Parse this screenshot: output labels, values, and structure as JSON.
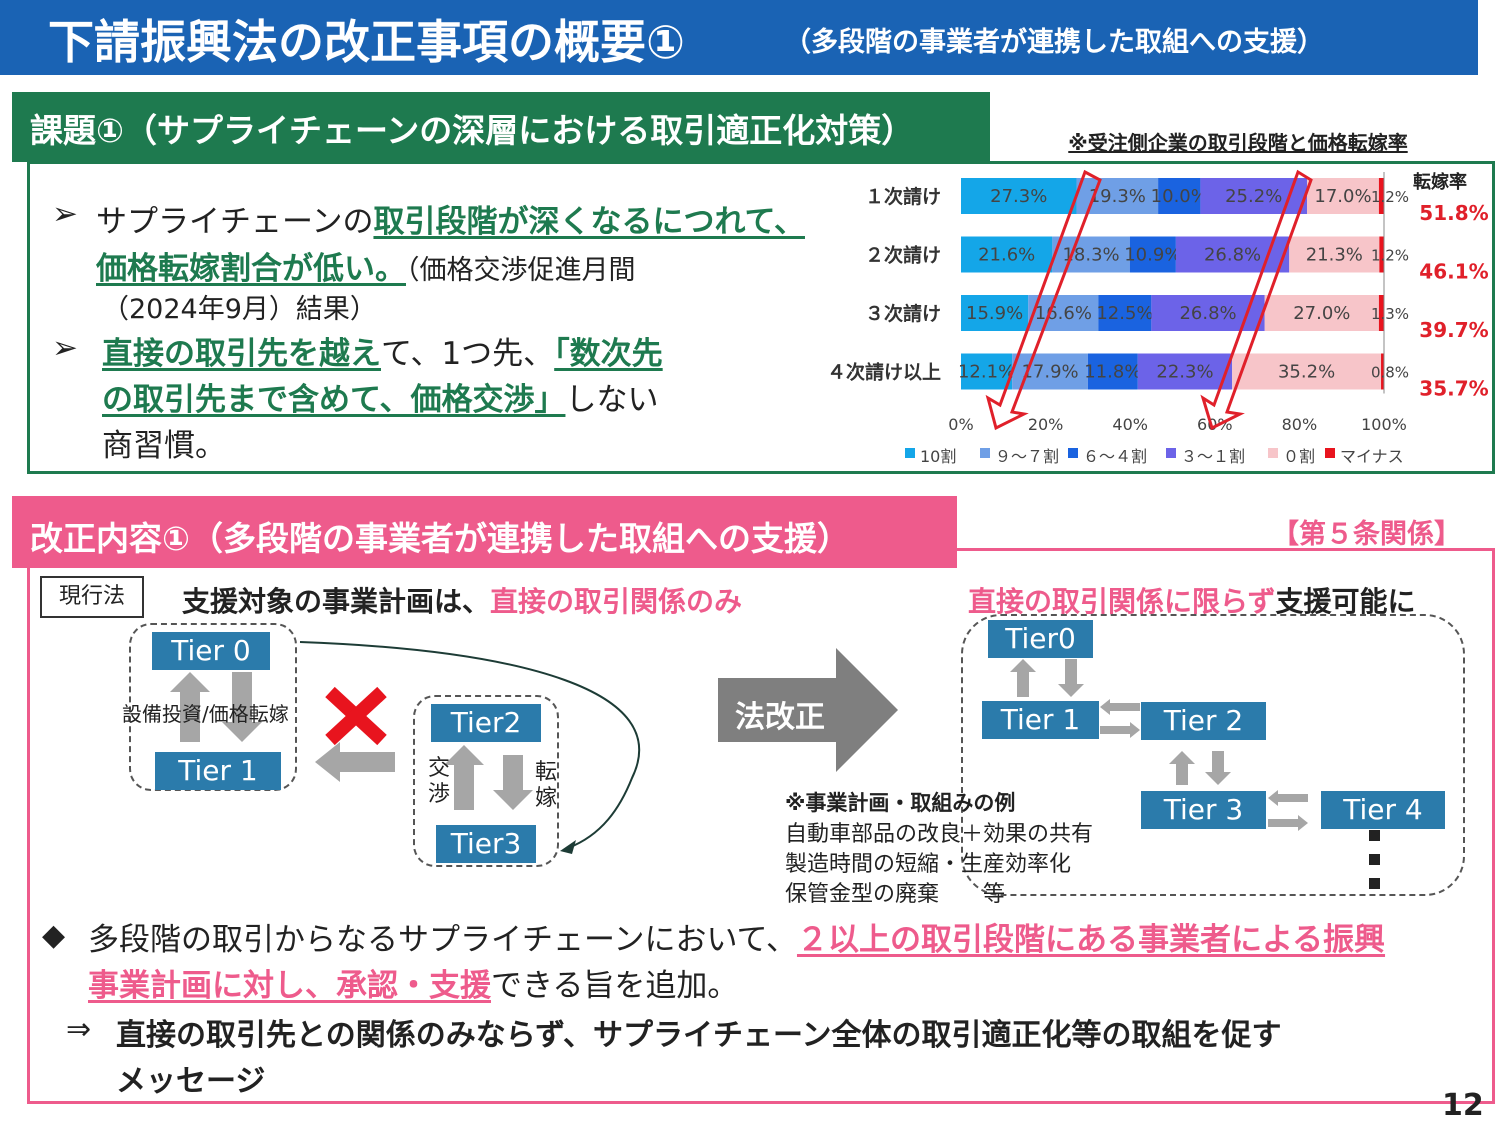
{
  "title": {
    "main": "下請振興法の改正事項の概要①",
    "sub": "（多段階の事業者が連携した取組への支援）"
  },
  "issue": {
    "header": "課題①（サプライチェーンの深層における取引適正化対策）",
    "b1_pre": "サプライチェーンの",
    "b1_em1": "取引段階が深くなるにつれて、",
    "b1_em2": "価格転嫁割合が低い。",
    "b1_post": "（価格交渉促進月間",
    "b1_post2": "（2024年9月）結果）",
    "b2_em1": "直接の取引先を越え",
    "b2_mid": "て、1つ先、",
    "b2_em2": "「数次先",
    "b2_em3": "の取引先まで含めて、価格交渉」",
    "b2_post": "しない",
    "b2_post2": "商習慣。"
  },
  "chart_data": {
    "type": "bar",
    "orientation": "horizontal-stacked-percent",
    "title": "※受注側企業の取引段階と価格転嫁率",
    "categories": [
      "１次請け",
      "２次請け",
      "３次請け",
      "４次請け以上"
    ],
    "series": [
      {
        "name": "10割",
        "color": "#14a6e8",
        "values": [
          27.3,
          21.6,
          15.9,
          12.1
        ]
      },
      {
        "name": "９～７割",
        "color": "#6f9fe6",
        "values": [
          19.3,
          18.3,
          16.6,
          17.9
        ]
      },
      {
        "name": "６～４割",
        "color": "#1a63e0",
        "values": [
          10.0,
          10.9,
          12.5,
          11.8
        ]
      },
      {
        "name": "３～１割",
        "color": "#6c63e8",
        "values": [
          25.2,
          26.8,
          26.8,
          22.3
        ]
      },
      {
        "name": "０割",
        "color": "#f7c5c9",
        "values": [
          17.0,
          21.3,
          27.0,
          35.2
        ]
      },
      {
        "name": "マイナス",
        "color": "#e8141e",
        "values": [
          1.2,
          1.2,
          1.3,
          0.8
        ]
      }
    ],
    "labels": [
      [
        "27.3%",
        "19.3%",
        "10.0%",
        "25.2%",
        "17.0%",
        "1.2%"
      ],
      [
        "21.6%",
        "18.3%",
        "10.9%",
        "26.8%",
        "21.3%",
        "1.2%"
      ],
      [
        "15.9%",
        "16.6%",
        "12.5%",
        "26.8%",
        "27.0%",
        "1.3%"
      ],
      [
        "12.1%",
        "17.9%",
        "11.8%",
        "22.3%",
        "35.2%",
        "0.8%"
      ]
    ],
    "xlim": [
      0,
      100
    ],
    "xticks": [
      "0%",
      "20%",
      "40%",
      "60%",
      "80%",
      "100%"
    ],
    "rate_label": "転嫁率",
    "rates": [
      "51.8%",
      "46.1%",
      "39.7%",
      "35.7%"
    ],
    "legend_position": "bottom"
  },
  "reform": {
    "header": "改正内容①（多段階の事業者が連携した取組への支援）",
    "article": "【第５条関係】",
    "current_law": "現行法",
    "left_pre": "支援対象の事業計画は、",
    "left_em": "直接の取引関係のみ",
    "right_em": "直接の取引関係に限らず",
    "right_post": "支援可能に",
    "left_diagram": {
      "tier0": "Tier 0",
      "tier1": "Tier 1",
      "tier2": "Tier2",
      "tier3": "Tier3",
      "label01": "設備投資/価格転嫁",
      "nego": "交渉",
      "pass": "転嫁"
    },
    "arrow_label": "法改正",
    "right_diagram": {
      "tier0": "Tier0",
      "tier1": "Tier 1",
      "tier2": "Tier 2",
      "tier3": "Tier 3",
      "tier4": "Tier 4"
    },
    "examples_title": "※事業計画・取組みの例",
    "examples": [
      "自動車部品の改良＋効果の共有",
      "製造時間の短縮・生産効率化",
      "保管金型の廃棄　　等"
    ],
    "point_pre": "多段階の取引からなるサプライチェーンにおいて、",
    "point_em1": "２以上の取引段階にある事業者による振興",
    "point_em2": "事業計画に対し、承認・支援",
    "point_post": "できる旨を追加。",
    "conclusion_arrow": "⇒",
    "conclusion": "直接の取引先との関係のみならず、サプライチェーン全体の取引適正化等の取組を促す",
    "conclusion2": "メッセージ"
  },
  "page_number": "12"
}
